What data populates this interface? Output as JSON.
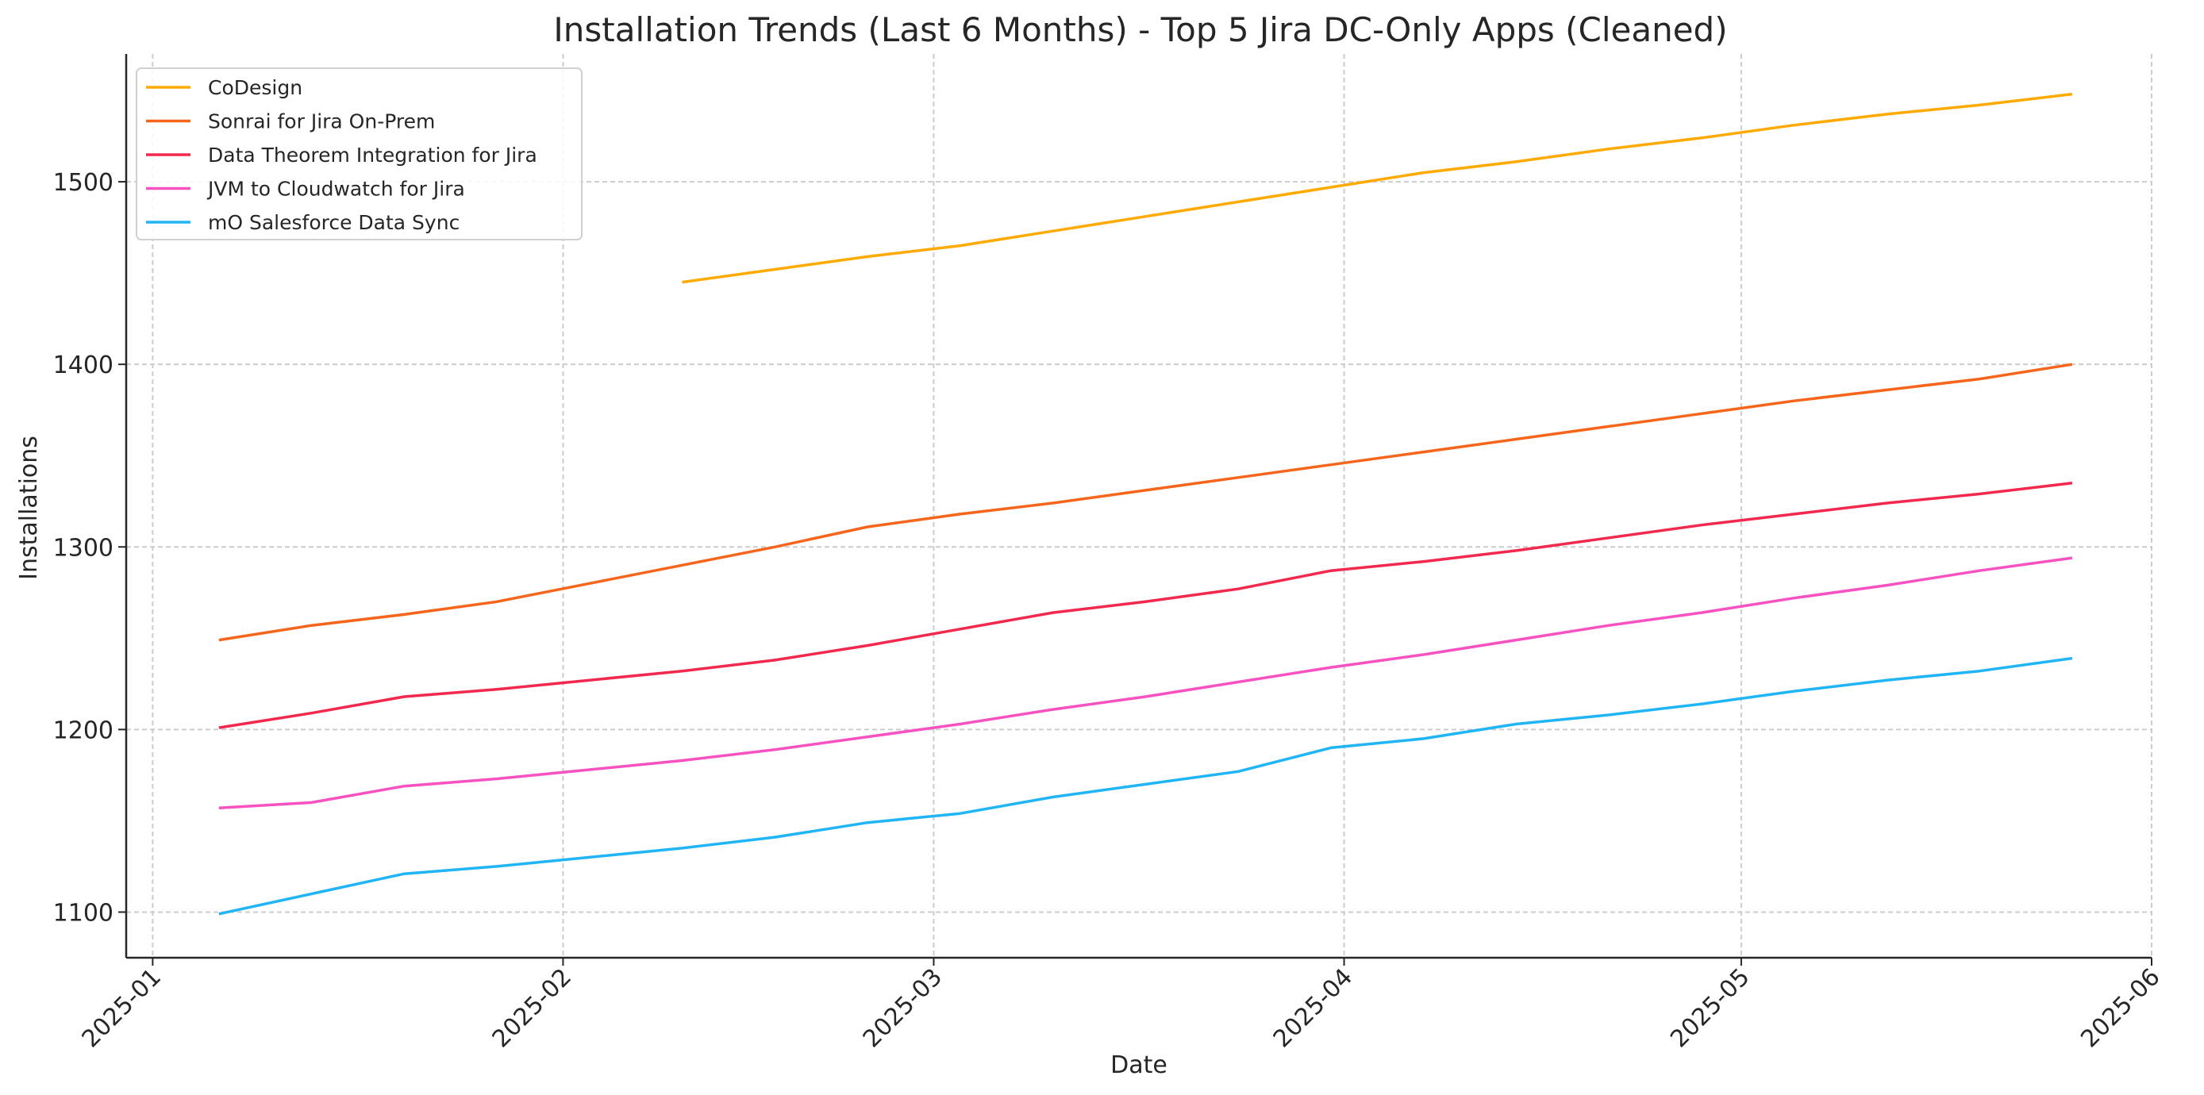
{
  "chart_data": {
    "type": "line",
    "title": "Installation Trends (Last 6 Months) - Top 5 Jira DC-Only Apps (Cleaned)",
    "xlabel": "Date",
    "ylabel": "Installations",
    "xlim": [
      "2024-12-30",
      "2025-06-01"
    ],
    "ylim": [
      1075,
      1570
    ],
    "grid": true,
    "legend_position": "top-left",
    "x_ticks": [
      "2025-01",
      "2025-02",
      "2025-03",
      "2025-04",
      "2025-05",
      "2025-06"
    ],
    "y_ticks": [
      1100,
      1200,
      1300,
      1400,
      1500
    ],
    "x": [
      "2025-01-06",
      "2025-01-13",
      "2025-01-20",
      "2025-01-27",
      "2025-02-03",
      "2025-02-10",
      "2025-02-17",
      "2025-02-24",
      "2025-03-03",
      "2025-03-10",
      "2025-03-17",
      "2025-03-24",
      "2025-03-31",
      "2025-04-07",
      "2025-04-14",
      "2025-04-21",
      "2025-04-28",
      "2025-05-05",
      "2025-05-12",
      "2025-05-19",
      "2025-05-26"
    ],
    "series": [
      {
        "name": "CoDesign",
        "color": "#FFAA00",
        "values": [
          null,
          null,
          null,
          null,
          null,
          1445,
          1452,
          1459,
          1465,
          1473,
          1481,
          1489,
          1497,
          1505,
          1511,
          1518,
          1524,
          1531,
          1537,
          1542,
          1548
        ]
      },
      {
        "name": "Sonrai for Jira On-Prem",
        "color": "#F5661C",
        "values": [
          1249,
          1257,
          1263,
          1270,
          1280,
          1290,
          1300,
          1311,
          1318,
          1324,
          1331,
          1338,
          1345,
          1352,
          1359,
          1366,
          1373,
          1380,
          1386,
          1392,
          1400
        ]
      },
      {
        "name": "Data Theorem Integration for Jira",
        "color": "#F2294E",
        "values": [
          1201,
          1209,
          1218,
          1222,
          1227,
          1232,
          1238,
          1246,
          1255,
          1264,
          1270,
          1277,
          1287,
          1292,
          1298,
          1305,
          1312,
          1318,
          1324,
          1329,
          1335
        ]
      },
      {
        "name": "JVM to Cloudwatch for Jira",
        "color": "#F752C2",
        "values": [
          1157,
          1160,
          1169,
          1173,
          1178,
          1183,
          1189,
          1196,
          1203,
          1211,
          1218,
          1226,
          1234,
          1241,
          1249,
          1257,
          1264,
          1272,
          1279,
          1287,
          1294
        ]
      },
      {
        "name": "mO Salesforce Data Sync",
        "color": "#22B5F5",
        "values": [
          1099,
          1110,
          1121,
          1125,
          1130,
          1135,
          1141,
          1149,
          1154,
          1163,
          1170,
          1177,
          1190,
          1195,
          1203,
          1208,
          1214,
          1221,
          1227,
          1232,
          1239
        ]
      }
    ]
  }
}
